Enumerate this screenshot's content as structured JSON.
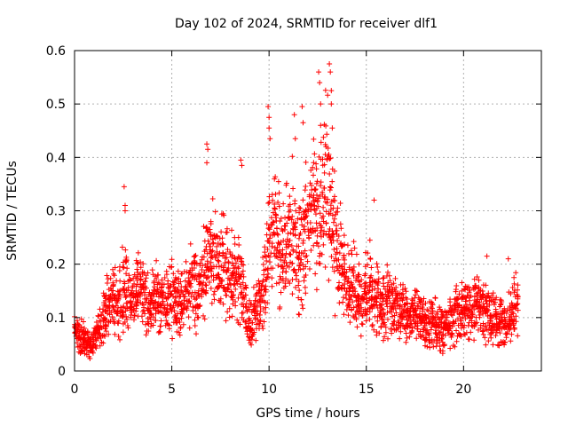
{
  "chart_data": {
    "type": "scatter",
    "title": "Day 102 of 2024, SRMTID for receiver dlf1",
    "xlabel": "GPS time / hours",
    "ylabel": "SRMTID / TECUs",
    "xlim": [
      0,
      24
    ],
    "ylim": [
      0,
      0.6
    ],
    "xticks": [
      0,
      5,
      10,
      15,
      20
    ],
    "yticks": [
      0,
      0.1,
      0.2,
      0.3,
      0.4,
      0.5,
      0.6
    ],
    "xtick_labels": [
      "0",
      "5",
      "10",
      "15",
      "20"
    ],
    "ytick_labels": [
      "0",
      "0.1",
      "0.2",
      "0.3",
      "0.4",
      "0.5",
      "0.6"
    ],
    "grid": true,
    "marker": "+",
    "series_color": "#ff0000",
    "series": [
      {
        "name": "SRMTID",
        "x": [
          0.0,
          0.2,
          0.4,
          0.6,
          0.8,
          1.0,
          1.2,
          1.4,
          1.6,
          1.8,
          2.0,
          2.2,
          2.4,
          2.6,
          2.8,
          3.0,
          3.2,
          3.4,
          3.6,
          3.8,
          4.0,
          4.2,
          4.4,
          4.6,
          4.8,
          5.0,
          5.2,
          5.4,
          5.6,
          5.8,
          6.0,
          6.2,
          6.4,
          6.6,
          6.8,
          7.0,
          7.2,
          7.4,
          7.6,
          7.8,
          8.0,
          8.2,
          8.4,
          8.6,
          8.8,
          9.0,
          9.2,
          9.4,
          9.6,
          9.8,
          10.0,
          10.2,
          10.4,
          10.6,
          10.8,
          11.0,
          11.2,
          11.4,
          11.6,
          11.8,
          12.0,
          12.2,
          12.4,
          12.6,
          12.8,
          13.0,
          13.2,
          13.4,
          13.6,
          13.8,
          14.0,
          14.2,
          14.4,
          14.6,
          14.8,
          15.0,
          15.2,
          15.4,
          15.6,
          15.8,
          16.0,
          16.2,
          16.4,
          16.6,
          16.8,
          17.0,
          17.2,
          17.4,
          17.6,
          17.8,
          18.0,
          18.2,
          18.4,
          18.6,
          18.8,
          19.0,
          19.2,
          19.4,
          19.6,
          19.8,
          20.0,
          20.2,
          20.4,
          20.6,
          20.8,
          21.0,
          21.2,
          21.4,
          21.6,
          21.8,
          22.0,
          22.2,
          22.4,
          22.6,
          22.8
        ],
        "y": [
          0.08,
          0.07,
          0.06,
          0.06,
          0.05,
          0.06,
          0.07,
          0.09,
          0.11,
          0.12,
          0.13,
          0.12,
          0.14,
          0.15,
          0.14,
          0.13,
          0.14,
          0.15,
          0.13,
          0.12,
          0.13,
          0.14,
          0.12,
          0.13,
          0.14,
          0.15,
          0.13,
          0.12,
          0.13,
          0.15,
          0.16,
          0.14,
          0.16,
          0.18,
          0.2,
          0.22,
          0.21,
          0.19,
          0.2,
          0.18,
          0.16,
          0.17,
          0.19,
          0.15,
          0.11,
          0.09,
          0.1,
          0.12,
          0.14,
          0.18,
          0.25,
          0.28,
          0.27,
          0.23,
          0.21,
          0.24,
          0.27,
          0.22,
          0.2,
          0.23,
          0.26,
          0.29,
          0.31,
          0.3,
          0.33,
          0.36,
          0.29,
          0.24,
          0.22,
          0.19,
          0.17,
          0.15,
          0.16,
          0.14,
          0.13,
          0.15,
          0.16,
          0.14,
          0.13,
          0.12,
          0.13,
          0.14,
          0.12,
          0.11,
          0.12,
          0.11,
          0.1,
          0.11,
          0.1,
          0.09,
          0.09,
          0.08,
          0.09,
          0.08,
          0.07,
          0.08,
          0.09,
          0.1,
          0.11,
          0.1,
          0.11,
          0.12,
          0.11,
          0.12,
          0.13,
          0.12,
          0.11,
          0.1,
          0.11,
          0.09,
          0.1,
          0.09,
          0.1,
          0.11,
          0.12
        ],
        "spread": [
          0.02,
          0.02,
          0.02,
          0.02,
          0.02,
          0.02,
          0.02,
          0.03,
          0.03,
          0.04,
          0.04,
          0.04,
          0.05,
          0.05,
          0.04,
          0.04,
          0.04,
          0.05,
          0.04,
          0.04,
          0.04,
          0.04,
          0.04,
          0.04,
          0.04,
          0.05,
          0.04,
          0.04,
          0.04,
          0.05,
          0.05,
          0.05,
          0.05,
          0.06,
          0.06,
          0.06,
          0.06,
          0.06,
          0.06,
          0.06,
          0.05,
          0.05,
          0.06,
          0.05,
          0.04,
          0.03,
          0.03,
          0.04,
          0.05,
          0.06,
          0.07,
          0.08,
          0.08,
          0.07,
          0.07,
          0.07,
          0.08,
          0.07,
          0.07,
          0.08,
          0.08,
          0.09,
          0.09,
          0.09,
          0.1,
          0.1,
          0.09,
          0.08,
          0.07,
          0.06,
          0.05,
          0.05,
          0.05,
          0.05,
          0.04,
          0.05,
          0.05,
          0.04,
          0.04,
          0.04,
          0.04,
          0.04,
          0.04,
          0.04,
          0.04,
          0.04,
          0.03,
          0.04,
          0.03,
          0.03,
          0.03,
          0.03,
          0.03,
          0.03,
          0.03,
          0.03,
          0.03,
          0.04,
          0.04,
          0.04,
          0.04,
          0.04,
          0.04,
          0.04,
          0.04,
          0.04,
          0.04,
          0.03,
          0.04,
          0.03,
          0.03,
          0.03,
          0.03,
          0.04,
          0.04
        ]
      }
    ],
    "outliers": {
      "x": [
        2.55,
        2.6,
        2.6,
        6.8,
        6.85,
        6.8,
        8.55,
        8.6,
        9.95,
        10.0,
        10.0,
        10.05,
        11.3,
        11.35,
        11.7,
        11.75,
        12.55,
        12.6,
        12.65,
        12.65,
        13.1,
        13.15,
        13.2,
        13.2,
        13.25,
        15.4,
        21.2,
        22.3
      ],
      "y": [
        0.345,
        0.31,
        0.3,
        0.425,
        0.415,
        0.39,
        0.395,
        0.385,
        0.495,
        0.475,
        0.455,
        0.435,
        0.48,
        0.435,
        0.495,
        0.465,
        0.56,
        0.54,
        0.5,
        0.46,
        0.575,
        0.56,
        0.525,
        0.5,
        0.455,
        0.32,
        0.215,
        0.21
      ]
    }
  }
}
